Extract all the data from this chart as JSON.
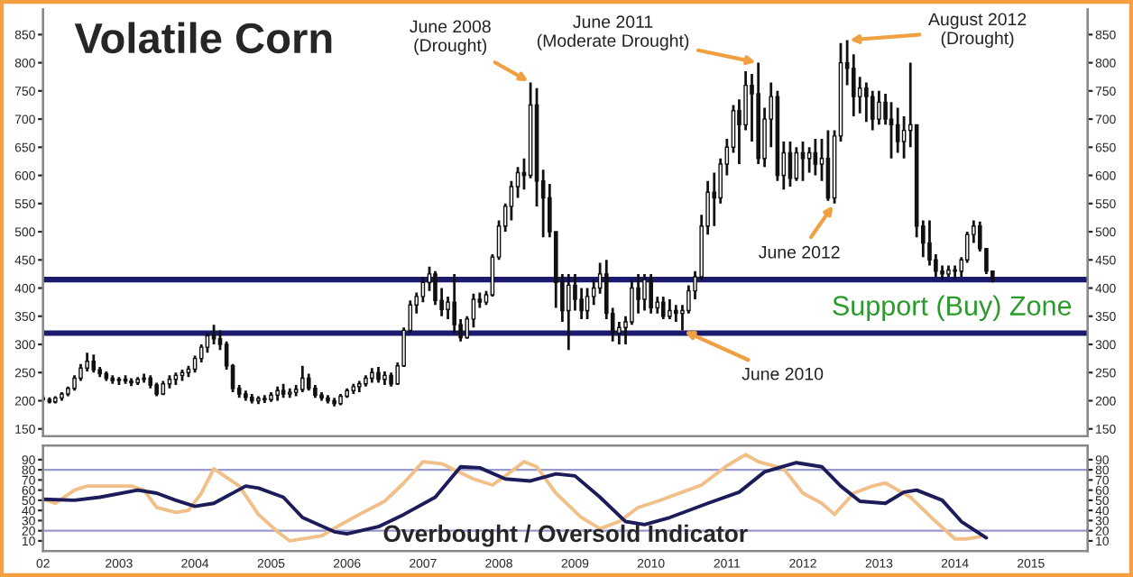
{
  "chart_data": [
    {
      "type": "candlestick",
      "title": "Volatile Corn",
      "x": [
        "2002-01",
        "2002-02",
        "2002-03",
        "2002-04",
        "2002-05",
        "2002-06",
        "2002-07",
        "2002-08",
        "2002-09",
        "2002-10",
        "2002-11",
        "2002-12",
        "2003-01",
        "2003-02",
        "2003-03",
        "2003-04",
        "2003-05",
        "2003-06",
        "2003-07",
        "2003-08",
        "2003-09",
        "2003-10",
        "2003-11",
        "2003-12",
        "2004-01",
        "2004-02",
        "2004-03",
        "2004-04",
        "2004-05",
        "2004-06",
        "2004-07",
        "2004-08",
        "2004-09",
        "2004-10",
        "2004-11",
        "2004-12",
        "2005-01",
        "2005-02",
        "2005-03",
        "2005-04",
        "2005-05",
        "2005-06",
        "2005-07",
        "2005-08",
        "2005-09",
        "2005-10",
        "2005-11",
        "2005-12",
        "2006-01",
        "2006-02",
        "2006-03",
        "2006-04",
        "2006-05",
        "2006-06",
        "2006-07",
        "2006-08",
        "2006-09",
        "2006-10",
        "2006-11",
        "2006-12",
        "2007-01",
        "2007-02",
        "2007-03",
        "2007-04",
        "2007-05",
        "2007-06",
        "2007-07",
        "2007-08",
        "2007-09",
        "2007-10",
        "2007-11",
        "2007-12",
        "2008-01",
        "2008-02",
        "2008-03",
        "2008-04",
        "2008-05",
        "2008-06",
        "2008-07",
        "2008-08",
        "2008-09",
        "2008-10",
        "2008-11",
        "2008-12",
        "2009-01",
        "2009-02",
        "2009-03",
        "2009-04",
        "2009-05",
        "2009-06",
        "2009-07",
        "2009-08",
        "2009-09",
        "2009-10",
        "2009-11",
        "2009-12",
        "2010-01",
        "2010-02",
        "2010-03",
        "2010-04",
        "2010-05",
        "2010-06",
        "2010-07",
        "2010-08",
        "2010-09",
        "2010-10",
        "2010-11",
        "2010-12",
        "2011-01",
        "2011-02",
        "2011-03",
        "2011-04",
        "2011-05",
        "2011-06",
        "2011-07",
        "2011-08",
        "2011-09",
        "2011-10",
        "2011-11",
        "2011-12",
        "2012-01",
        "2012-02",
        "2012-03",
        "2012-04",
        "2012-05",
        "2012-06",
        "2012-07",
        "2012-08",
        "2012-09",
        "2012-10",
        "2012-11",
        "2012-12",
        "2013-01",
        "2013-02",
        "2013-03",
        "2013-04",
        "2013-05",
        "2013-06",
        "2013-07",
        "2013-08",
        "2013-09",
        "2013-10",
        "2013-11",
        "2013-12",
        "2014-01",
        "2014-02",
        "2014-03",
        "2014-04",
        "2014-05",
        "2014-06",
        "2014-07"
      ],
      "ohlc": [
        [
          205,
          210,
          198,
          202
        ],
        [
          202,
          206,
          195,
          198
        ],
        [
          198,
          208,
          195,
          205
        ],
        [
          205,
          215,
          200,
          212
        ],
        [
          212,
          225,
          208,
          222
        ],
        [
          222,
          245,
          218,
          240
        ],
        [
          240,
          265,
          235,
          258
        ],
        [
          258,
          285,
          252,
          270
        ],
        [
          270,
          282,
          250,
          255
        ],
        [
          255,
          260,
          242,
          248
        ],
        [
          248,
          252,
          235,
          240
        ],
        [
          240,
          245,
          230,
          236
        ],
        [
          236,
          242,
          228,
          238
        ],
        [
          238,
          245,
          230,
          235
        ],
        [
          235,
          240,
          226,
          232
        ],
        [
          232,
          242,
          228,
          238
        ],
        [
          238,
          248,
          232,
          240
        ],
        [
          240,
          245,
          222,
          228
        ],
        [
          228,
          232,
          208,
          212
        ],
        [
          212,
          235,
          210,
          230
        ],
        [
          230,
          245,
          222,
          238
        ],
        [
          238,
          250,
          228,
          245
        ],
        [
          245,
          255,
          235,
          250
        ],
        [
          250,
          262,
          242,
          256
        ],
        [
          256,
          280,
          250,
          275
        ],
        [
          275,
          300,
          268,
          295
        ],
        [
          295,
          320,
          285,
          315
        ],
        [
          315,
          335,
          300,
          310
        ],
        [
          310,
          325,
          290,
          300
        ],
        [
          300,
          305,
          255,
          262
        ],
        [
          262,
          265,
          215,
          222
        ],
        [
          222,
          228,
          205,
          212
        ],
        [
          212,
          218,
          200,
          206
        ],
        [
          206,
          212,
          195,
          200
        ],
        [
          200,
          208,
          194,
          204
        ],
        [
          204,
          210,
          196,
          202
        ],
        [
          202,
          215,
          198,
          210
        ],
        [
          210,
          225,
          200,
          218
        ],
        [
          218,
          230,
          205,
          212
        ],
        [
          212,
          222,
          205,
          215
        ],
        [
          215,
          228,
          208,
          220
        ],
        [
          220,
          262,
          215,
          240
        ],
        [
          240,
          248,
          218,
          222
        ],
        [
          222,
          228,
          205,
          210
        ],
        [
          210,
          215,
          200,
          205
        ],
        [
          205,
          210,
          195,
          200
        ],
        [
          200,
          205,
          190,
          195
        ],
        [
          195,
          212,
          192,
          208
        ],
        [
          208,
          222,
          205,
          218
        ],
        [
          218,
          230,
          212,
          225
        ],
        [
          225,
          235,
          215,
          230
        ],
        [
          230,
          245,
          225,
          240
        ],
        [
          240,
          258,
          232,
          250
        ],
        [
          250,
          260,
          232,
          238
        ],
        [
          238,
          252,
          228,
          245
        ],
        [
          245,
          250,
          225,
          230
        ],
        [
          230,
          268,
          228,
          262
        ],
        [
          262,
          330,
          260,
          325
        ],
        [
          325,
          378,
          320,
          370
        ],
        [
          370,
          392,
          355,
          385
        ],
        [
          385,
          420,
          375,
          410
        ],
        [
          410,
          438,
          395,
          425
        ],
        [
          425,
          430,
          370,
          378
        ],
        [
          378,
          400,
          350,
          362
        ],
        [
          362,
          385,
          345,
          375
        ],
        [
          375,
          425,
          320,
          335
        ],
        [
          335,
          345,
          305,
          312
        ],
        [
          312,
          350,
          310,
          345
        ],
        [
          345,
          390,
          330,
          380
        ],
        [
          380,
          392,
          365,
          375
        ],
        [
          375,
          395,
          370,
          388
        ],
        [
          388,
          460,
          385,
          455
        ],
        [
          455,
          520,
          450,
          510
        ],
        [
          510,
          550,
          500,
          545
        ],
        [
          545,
          590,
          520,
          580
        ],
        [
          580,
          615,
          560,
          605
        ],
        [
          605,
          630,
          575,
          600
        ],
        [
          600,
          765,
          595,
          725
        ],
        [
          725,
          755,
          545,
          590
        ],
        [
          590,
          610,
          490,
          560
        ],
        [
          560,
          585,
          490,
          500
        ],
        [
          500,
          500,
          365,
          410
        ],
        [
          410,
          425,
          340,
          360
        ],
        [
          360,
          425,
          290,
          405
        ],
        [
          405,
          425,
          360,
          380
        ],
        [
          380,
          400,
          345,
          360
        ],
        [
          360,
          400,
          345,
          385
        ],
        [
          385,
          415,
          370,
          400
        ],
        [
          400,
          445,
          390,
          425
        ],
        [
          425,
          450,
          345,
          355
        ],
        [
          355,
          365,
          305,
          320
        ],
        [
          320,
          340,
          300,
          330
        ],
        [
          330,
          350,
          300,
          340
        ],
        [
          340,
          415,
          335,
          400
        ],
        [
          400,
          425,
          355,
          380
        ],
        [
          380,
          425,
          360,
          415
        ],
        [
          415,
          425,
          355,
          365
        ],
        [
          365,
          385,
          355,
          375
        ],
        [
          375,
          385,
          345,
          350
        ],
        [
          350,
          380,
          345,
          360
        ],
        [
          360,
          370,
          340,
          355
        ],
        [
          355,
          370,
          325,
          360
        ],
        [
          360,
          405,
          355,
          395
        ],
        [
          395,
          430,
          380,
          420
        ],
        [
          420,
          530,
          415,
          510
        ],
        [
          510,
          590,
          495,
          570
        ],
        [
          570,
          605,
          510,
          560
        ],
        [
          560,
          630,
          550,
          620
        ],
        [
          620,
          665,
          600,
          650
        ],
        [
          650,
          725,
          640,
          715
        ],
        [
          715,
          735,
          620,
          690
        ],
        [
          690,
          785,
          680,
          760
        ],
        [
          760,
          780,
          660,
          745
        ],
        [
          745,
          800,
          620,
          630
        ],
        [
          630,
          720,
          615,
          700
        ],
        [
          700,
          765,
          650,
          740
        ],
        [
          740,
          750,
          590,
          600
        ],
        [
          600,
          660,
          575,
          640
        ],
        [
          640,
          660,
          580,
          595
        ],
        [
          595,
          650,
          590,
          640
        ],
        [
          640,
          660,
          590,
          630
        ],
        [
          630,
          650,
          605,
          640
        ],
        [
          640,
          665,
          600,
          620
        ],
        [
          620,
          665,
          590,
          630
        ],
        [
          630,
          680,
          555,
          560
        ],
        [
          560,
          680,
          550,
          670
        ],
        [
          670,
          835,
          660,
          800
        ],
        [
          800,
          840,
          760,
          790
        ],
        [
          790,
          815,
          705,
          740
        ],
        [
          740,
          775,
          710,
          755
        ],
        [
          755,
          765,
          695,
          740
        ],
        [
          740,
          750,
          680,
          700
        ],
        [
          700,
          750,
          690,
          730
        ],
        [
          730,
          745,
          690,
          700
        ],
        [
          700,
          730,
          630,
          690
        ],
        [
          690,
          720,
          640,
          660
        ],
        [
          660,
          705,
          630,
          680
        ],
        [
          680,
          800,
          650,
          690
        ],
        [
          690,
          690,
          490,
          510
        ],
        [
          510,
          520,
          455,
          480
        ],
        [
          480,
          520,
          440,
          450
        ],
        [
          450,
          460,
          420,
          430
        ],
        [
          430,
          440,
          415,
          425
        ],
        [
          425,
          440,
          420,
          432
        ],
        [
          432,
          440,
          415,
          430
        ],
        [
          430,
          455,
          420,
          450
        ],
        [
          450,
          500,
          445,
          495
        ],
        [
          495,
          520,
          480,
          510
        ],
        [
          510,
          518,
          465,
          470
        ],
        [
          470,
          470,
          425,
          430
        ],
        [
          430,
          430,
          410,
          415
        ]
      ],
      "color": "#111111",
      "xlim": [
        "2002-01",
        "2015-10"
      ],
      "ylim": [
        137,
        895
      ],
      "yticks": [
        150,
        200,
        250,
        300,
        350,
        400,
        450,
        500,
        550,
        600,
        650,
        700,
        750,
        800,
        850
      ],
      "y2lim": [
        137,
        895
      ],
      "y2ticks": [
        150,
        200,
        250,
        300,
        350,
        400,
        450,
        500,
        550,
        600,
        650,
        700,
        750,
        800,
        850
      ],
      "tick_labels": "y",
      "ref_lines": [
        {
          "axis": "y",
          "value": 415,
          "color": "#1a1a6e"
        },
        {
          "axis": "y",
          "value": 320,
          "color": "#1a1a6e"
        }
      ],
      "annotations": [
        {
          "text": "June 2008\n(Drought)",
          "x": "2008-06",
          "y": 765
        },
        {
          "text": "June 2011\n(Moderate Drought)",
          "x": "2011-06",
          "y": 800
        },
        {
          "text": "August 2012\n(Drought)",
          "x": "2012-08",
          "y": 840
        },
        {
          "text": "June 2012",
          "x": "2012-06",
          "y": 550
        },
        {
          "text": "June 2010",
          "x": "2010-06",
          "y": 325
        },
        "Support (Buy) Zone"
      ]
    },
    {
      "type": "line",
      "title": "Overbought / Oversold Indicator",
      "series": [
        {
          "color": "#f0c088",
          "x": [
            "2002-01",
            "2002-03",
            "2002-06",
            "2002-08",
            "2002-11",
            "2003-03",
            "2003-05",
            "2003-07",
            "2003-10",
            "2003-12",
            "2004-02",
            "2004-04",
            "2004-08",
            "2004-11",
            "2005-02",
            "2005-04",
            "2005-09",
            "2005-12",
            "2006-03",
            "2006-07",
            "2006-10",
            "2007-01",
            "2007-04",
            "2007-09",
            "2007-12",
            "2008-02",
            "2008-05",
            "2008-07",
            "2008-10",
            "2009-02",
            "2009-05",
            "2009-08",
            "2009-11",
            "2010-02",
            "2010-06",
            "2010-09",
            "2011-01",
            "2011-04",
            "2011-06",
            "2011-10",
            "2012-01",
            "2012-04",
            "2012-06",
            "2012-09",
            "2012-12",
            "2013-02",
            "2013-06",
            "2013-10",
            "2014-01",
            "2014-03",
            "2014-05"
          ],
          "values": [
            51,
            47,
            60,
            64,
            64,
            64,
            60,
            43,
            38,
            40,
            57,
            81,
            64,
            36,
            19,
            10,
            15,
            26,
            36,
            49,
            67,
            88,
            86,
            71,
            65,
            74,
            88,
            83,
            57,
            33,
            22,
            29,
            43,
            49,
            58,
            65,
            84,
            95,
            88,
            81,
            57,
            47,
            36,
            57,
            64,
            67,
            53,
            29,
            12,
            12,
            14
          ]
        },
        {
          "color": "#1c1c5a",
          "x": [
            "2002-01",
            "2002-06",
            "2002-10",
            "2003-04",
            "2003-07",
            "2003-10",
            "2004-01",
            "2004-04",
            "2004-09",
            "2004-11",
            "2005-03",
            "2005-06",
            "2005-11",
            "2006-01",
            "2006-06",
            "2006-10",
            "2007-03",
            "2007-07",
            "2007-10",
            "2008-02",
            "2008-06",
            "2008-10",
            "2009-01",
            "2009-05",
            "2009-09",
            "2009-12",
            "2010-04",
            "2010-10",
            "2011-03",
            "2011-07",
            "2011-12",
            "2012-04",
            "2012-07",
            "2012-10",
            "2013-02",
            "2013-05",
            "2013-07",
            "2013-11",
            "2014-02",
            "2014-06"
          ],
          "values": [
            51,
            50,
            53,
            60,
            57,
            50,
            44,
            47,
            64,
            62,
            53,
            33,
            19,
            17,
            24,
            36,
            53,
            83,
            82,
            71,
            69,
            76,
            74,
            53,
            29,
            26,
            33,
            47,
            58,
            78,
            87,
            83,
            64,
            49,
            47,
            58,
            60,
            50,
            29,
            13
          ]
        }
      ],
      "xlim": [
        "2002-01",
        "2015-10"
      ],
      "xticks": [
        {
          "value": "2002-01",
          "label": "02"
        },
        {
          "value": "2003-01",
          "label": "2003"
        },
        {
          "value": "2004-01",
          "label": "2004"
        },
        {
          "value": "2005-01",
          "label": "2005"
        },
        {
          "value": "2006-01",
          "label": "2006"
        },
        {
          "value": "2007-01",
          "label": "2007"
        },
        {
          "value": "2008-01",
          "label": "2008"
        },
        {
          "value": "2009-01",
          "label": "2009"
        },
        {
          "value": "2010-01",
          "label": "2010"
        },
        {
          "value": "2011-01",
          "label": "2011"
        },
        {
          "value": "2012-01",
          "label": "2012"
        },
        {
          "value": "2013-01",
          "label": "2013"
        },
        {
          "value": "2014-01",
          "label": "2014"
        },
        {
          "value": "2015-01",
          "label": "2015"
        }
      ],
      "ylim": [
        0,
        104
      ],
      "yticks": [
        10,
        20,
        30,
        40,
        50,
        60,
        70,
        80,
        90
      ],
      "y2lim": [
        0,
        104
      ],
      "y2ticks": [
        10,
        20,
        30,
        40,
        50,
        60,
        70,
        80,
        90
      ],
      "ref_lines": [
        {
          "axis": "y",
          "value": 80,
          "color": "#9999cc"
        },
        {
          "axis": "y",
          "value": 20,
          "color": "#9999cc"
        }
      ]
    }
  ]
}
